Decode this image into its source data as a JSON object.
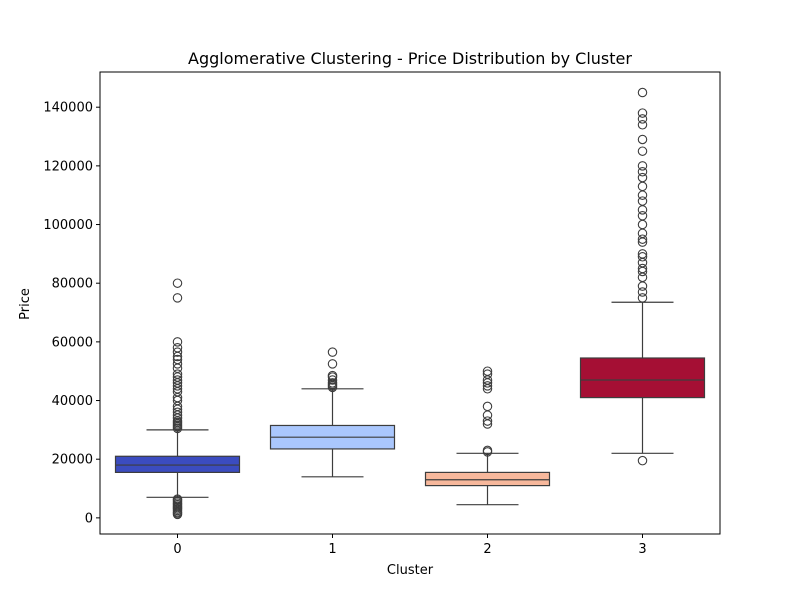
{
  "chart_data": {
    "type": "box",
    "title": "Agglomerative Clustering - Price Distribution by Cluster",
    "xlabel": "Cluster",
    "ylabel": "Price",
    "categories": [
      "0",
      "1",
      "2",
      "3"
    ],
    "ylim": [
      -5500,
      152000
    ],
    "yticks": [
      0,
      20000,
      40000,
      60000,
      80000,
      100000,
      120000,
      140000
    ],
    "ytick_labels": [
      "0",
      "20000",
      "40000",
      "60000",
      "80000",
      "100000",
      "120000",
      "140000"
    ],
    "grid": false,
    "legend": "none",
    "boxes": [
      {
        "category": "0",
        "color": "#3b4cc0",
        "whisker_low": 7000,
        "q1": 15500,
        "median": 18000,
        "q3": 21000,
        "whisker_high": 30000,
        "outliers": [
          1200,
          1600,
          2000,
          2500,
          3000,
          3500,
          4000,
          4500,
          5000,
          5500,
          6000,
          6400,
          30500,
          31000,
          31500,
          32000,
          32500,
          33000,
          34000,
          35000,
          36000,
          37000,
          38000,
          40000,
          41000,
          43000,
          44000,
          45000,
          46000,
          47000,
          48000,
          49000,
          51000,
          52500,
          54000,
          55000,
          56500,
          58000,
          60000,
          75000,
          80000
        ]
      },
      {
        "category": "1",
        "color": "#aac7fd",
        "whisker_low": 14000,
        "q1": 23500,
        "median": 27500,
        "q3": 31500,
        "whisker_high": 44000,
        "outliers": [
          44500,
          45000,
          45500,
          46000,
          47000,
          48000,
          48500,
          52500,
          56500
        ]
      },
      {
        "category": "2",
        "color": "#f7b89c",
        "whisker_low": 4500,
        "q1": 11000,
        "median": 13000,
        "q3": 15500,
        "whisker_high": 22000,
        "outliers": [
          22500,
          23000,
          32000,
          33000,
          35000,
          38000,
          44000,
          45000,
          46000,
          47000,
          49000,
          50000
        ]
      },
      {
        "category": "3",
        "color": "#a50f34",
        "whisker_low": 22000,
        "q1": 41000,
        "median": 47000,
        "q3": 54500,
        "whisker_high": 73500,
        "outliers": [
          19500,
          75000,
          77000,
          79000,
          82000,
          84000,
          85000,
          87000,
          89000,
          90000,
          94000,
          95000,
          97000,
          100000,
          103000,
          105000,
          108000,
          110000,
          113000,
          116000,
          118000,
          120000,
          125000,
          129000,
          134000,
          136000,
          138000,
          145000
        ]
      }
    ]
  }
}
